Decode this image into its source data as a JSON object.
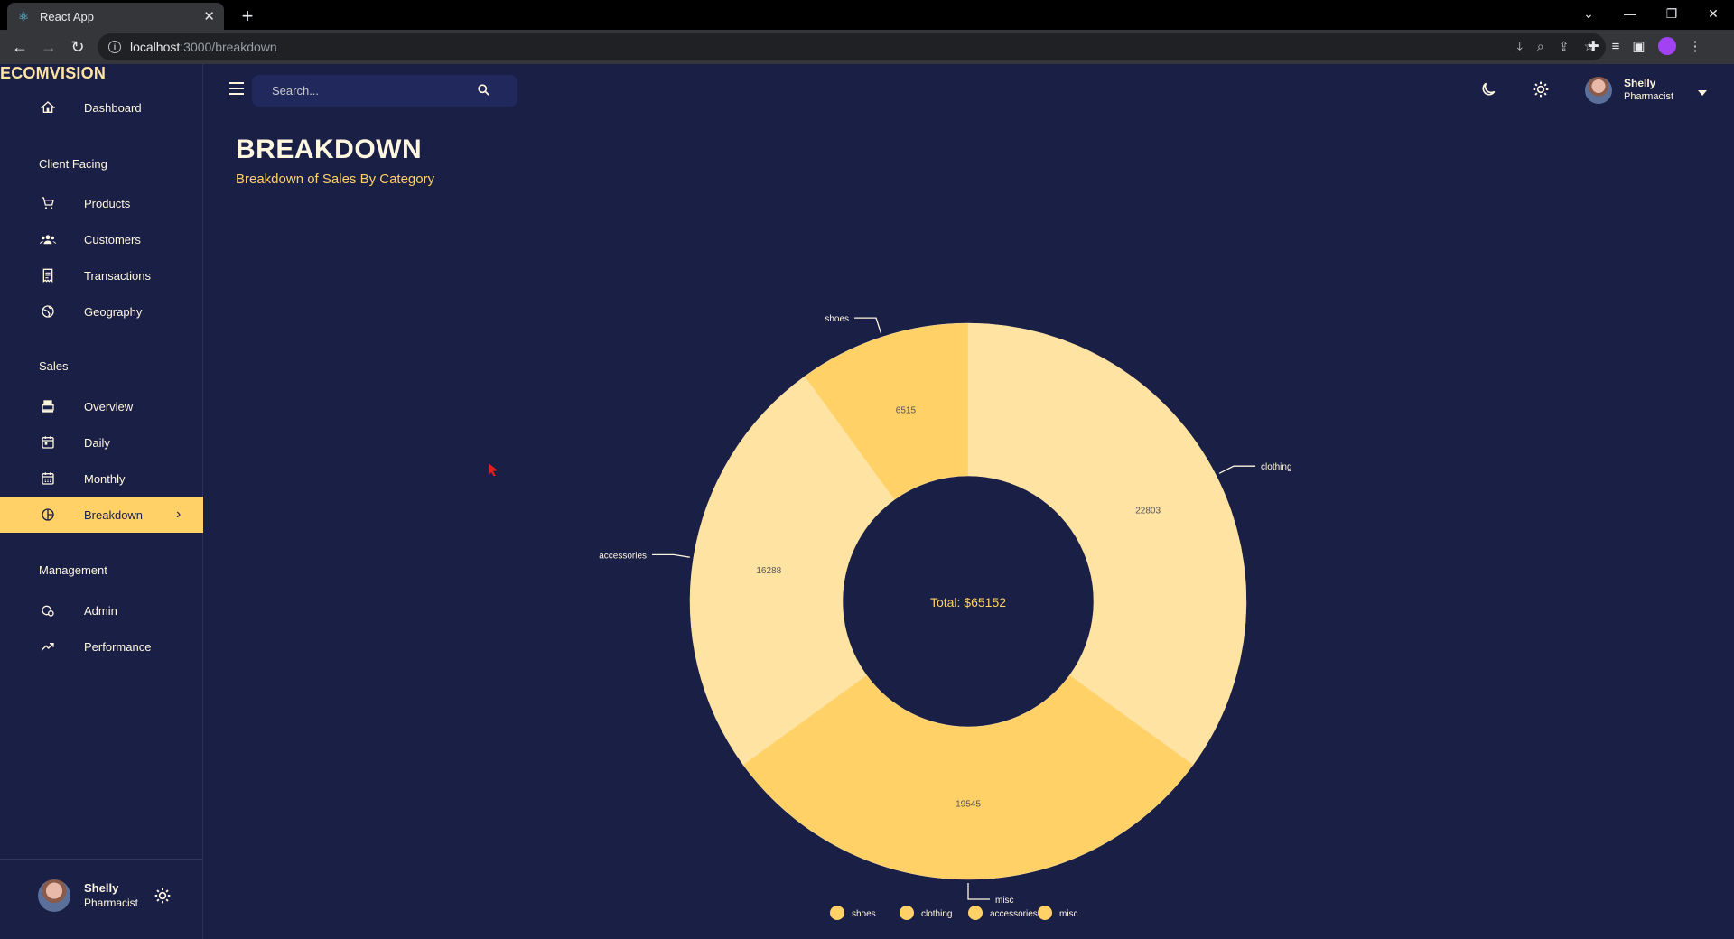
{
  "browser": {
    "tab_title": "React App",
    "url_host": "localhost",
    "url_path": ":3000/breakdown"
  },
  "brand": "ECOMVISION",
  "nav": {
    "dashboard": "Dashboard",
    "section_client": "Client Facing",
    "products": "Products",
    "customers": "Customers",
    "transactions": "Transactions",
    "geography": "Geography",
    "section_sales": "Sales",
    "overview": "Overview",
    "daily": "Daily",
    "monthly": "Monthly",
    "breakdown": "Breakdown",
    "section_management": "Management",
    "admin": "Admin",
    "performance": "Performance"
  },
  "user": {
    "name": "Shelly",
    "role": "Pharmacist"
  },
  "search": {
    "placeholder": "Search..."
  },
  "header": {
    "title": "BREAKDOWN",
    "subtitle": "Breakdown of Sales By Category"
  },
  "chart_data": {
    "type": "pie",
    "variant": "donut",
    "center_label": "Total: $65152",
    "slices": [
      {
        "label": "clothing",
        "value": 22803,
        "color": "#FFE3A3"
      },
      {
        "label": "misc",
        "value": 19545,
        "color": "#FFD166"
      },
      {
        "label": "accessories",
        "value": 16288,
        "color": "#FFE3A3"
      },
      {
        "label": "shoes",
        "value": 6515,
        "color": "#FFD166"
      }
    ],
    "legend": [
      "shoes",
      "clothing",
      "accessories",
      "misc"
    ],
    "legend_placement": "bottom",
    "label_color": "#FFF6E0",
    "value_label_color": "#555555"
  },
  "colors": {
    "background": "#191F45",
    "accent": "#FFD166",
    "light_accent": "#FFE3A3",
    "text": "#FFF6E0"
  }
}
